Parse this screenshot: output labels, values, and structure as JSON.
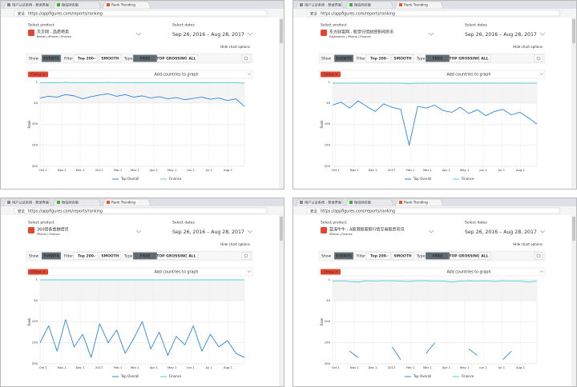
{
  "windows": [
    {
      "tabs": [
        "用户认证系统 - 登录界面",
        "微信网页版",
        "Rank Trending"
      ],
      "secure": "安全",
      "url": "https://appfigures.com/reports/ranking",
      "product_label": "Select product",
      "product": "贝贝网 - 品质特卖",
      "developer": "Beibei | iPhone | Finance",
      "dates_label": "Select dates",
      "dates": "Sep 26, 2016 – Aug 28, 2017",
      "hide_options": "Hide chart options",
      "show_label": "Show",
      "events": "EVENTS",
      "filter_label": "Filter",
      "filter": "Top 200",
      "smooth": "SMOOTH",
      "type_label": "Type",
      "types": [
        "FREE",
        "TOP GROSSING",
        "ALL"
      ],
      "country": "China ×",
      "add_countries": "Add countries to graph",
      "chart_data": {
        "type": "line",
        "y_label": "Rank",
        "reversed": true,
        "grid": true,
        "x": [
          0,
          14,
          28,
          42,
          56,
          70,
          84,
          98,
          112,
          126,
          140,
          154,
          168,
          182,
          196,
          210,
          224,
          238,
          252,
          266,
          280,
          294,
          308,
          322,
          336
        ],
        "xlim": [
          0,
          336
        ],
        "xticks": [
          {
            "value": 5,
            "label": "Oct 1"
          },
          {
            "value": 36,
            "label": "Nov 1"
          },
          {
            "value": 66,
            "label": "Dec 1"
          },
          {
            "value": 97,
            "label": "2017"
          },
          {
            "value": 128,
            "label": "Feb 1"
          },
          {
            "value": 156,
            "label": "Mar 1"
          },
          {
            "value": 187,
            "label": "Apr 1"
          },
          {
            "value": 217,
            "label": "May 1"
          },
          {
            "value": 248,
            "label": "Jun 1"
          },
          {
            "value": 278,
            "label": "Jul 1"
          },
          {
            "value": 309,
            "label": "Aug 1"
          }
        ],
        "ylim": [
          1,
          200
        ],
        "yticks": [
          1,
          50,
          100,
          150,
          200
        ],
        "series": [
          {
            "name": "Top Overall",
            "color": "#2f86d9",
            "values": [
              38,
              34,
              36,
              30,
              33,
              40,
              35,
              31,
              28,
              34,
              30,
              36,
              33,
              38,
              35,
              40,
              37,
              42,
              39,
              36,
              41,
              38,
              44,
              40,
              58
            ]
          },
          {
            "name": "Finance",
            "color": "#4fd1d9",
            "values": [
              2,
              2,
              2,
              1,
              2,
              2,
              2,
              2,
              1,
              2,
              2,
              2,
              2,
              2,
              2,
              2,
              2,
              2,
              2,
              2,
              2,
              2,
              2,
              2,
              3
            ]
          }
        ]
      }
    },
    {
      "tabs": [
        "用户认证系统 - 登录界面",
        "微信网页版",
        "Rank Trending"
      ],
      "secure": "安全",
      "url": "https://appfigures.com/reports/ranking",
      "product_label": "Select product",
      "product": "东方财富网 - 股票行情财经新闻资讯",
      "developer": "Eastmoney | iPhone | Finance",
      "dates_label": "Select dates",
      "dates": "Sep 26, 2016 – Aug 28, 2017",
      "hide_options": "Hide chart options",
      "show_label": "Show",
      "events": "EVENTS",
      "filter_label": "Filter",
      "filter": "Top 200",
      "smooth": "SMOOTH",
      "type_label": "Type",
      "types": [
        "FREE",
        "TOP GROSSING",
        "ALL"
      ],
      "country": "China ×",
      "add_countries": "Add countries to graph",
      "chart_data": {
        "type": "line",
        "y_label": "Rank",
        "reversed": true,
        "grid": true,
        "x": [
          0,
          14,
          28,
          42,
          56,
          70,
          84,
          98,
          112,
          126,
          140,
          154,
          168,
          182,
          196,
          210,
          224,
          238,
          252,
          266,
          280,
          294,
          308,
          322,
          336
        ],
        "xlim": [
          0,
          336
        ],
        "xticks": [
          {
            "value": 5,
            "label": "Oct 1"
          },
          {
            "value": 36,
            "label": "Nov 1"
          },
          {
            "value": 66,
            "label": "Dec 1"
          },
          {
            "value": 97,
            "label": "2017"
          },
          {
            "value": 128,
            "label": "Feb 1"
          },
          {
            "value": 156,
            "label": "Mar 1"
          },
          {
            "value": 187,
            "label": "Apr 1"
          },
          {
            "value": 217,
            "label": "May 1"
          },
          {
            "value": 248,
            "label": "Jun 1"
          },
          {
            "value": 278,
            "label": "Jul 1"
          },
          {
            "value": 309,
            "label": "Aug 1"
          }
        ],
        "ylim": [
          1,
          200
        ],
        "yticks": [
          1,
          50,
          100,
          150,
          200
        ],
        "series": [
          {
            "name": "Top Overall",
            "color": "#2f86d9",
            "values": [
              55,
              48,
              62,
              45,
              58,
              70,
              52,
              60,
              65,
              150,
              58,
              62,
              55,
              68,
              72,
              60,
              75,
              66,
              80,
              70,
              65,
              78,
              72,
              85,
              100
            ]
          },
          {
            "name": "Finance",
            "color": "#4fd1d9",
            "values": [
              3,
              3,
              3,
              3,
              3,
              3,
              3,
              3,
              3,
              4,
              3,
              3,
              3,
              3,
              3,
              3,
              3,
              3,
              3,
              3,
              3,
              3,
              3,
              3,
              3
            ]
          }
        ]
      }
    },
    {
      "tabs": [
        "用户认证系统 - 登录界面",
        "微信网页版",
        "Rank Trending"
      ],
      "secure": "安全",
      "url": "https://appfigures.com/reports/ranking",
      "product_label": "Select product",
      "product": "360借条金融借贷",
      "developer": "iPhone | Finance",
      "dates_label": "Select dates",
      "dates": "Sep 26, 2016 – Aug 28, 2017",
      "hide_options": "Hide chart options",
      "show_label": "Show",
      "events": "EVENTS",
      "filter_label": "Filter",
      "filter": "Top 200",
      "smooth": "SMOOTH",
      "type_label": "Type",
      "types": [
        "FREE",
        "TOP GROSSING",
        "ALL"
      ],
      "country": "China ×",
      "add_countries": "Add countries to graph",
      "chart_data": {
        "type": "line",
        "y_label": "Rank",
        "reversed": true,
        "grid": true,
        "x": [
          0,
          14,
          28,
          42,
          56,
          70,
          84,
          98,
          112,
          126,
          140,
          154,
          168,
          182,
          196,
          210,
          224,
          238,
          252,
          266,
          280,
          294,
          308,
          322,
          336
        ],
        "xlim": [
          0,
          336
        ],
        "xticks": [
          {
            "value": 5,
            "label": "Oct 1"
          },
          {
            "value": 36,
            "label": "Nov 1"
          },
          {
            "value": 66,
            "label": "Dec 1"
          },
          {
            "value": 97,
            "label": "2017"
          },
          {
            "value": 128,
            "label": "Feb 1"
          },
          {
            "value": 156,
            "label": "Mar 1"
          },
          {
            "value": 187,
            "label": "Apr 1"
          },
          {
            "value": 217,
            "label": "May 1"
          },
          {
            "value": 248,
            "label": "Jun 1"
          },
          {
            "value": 278,
            "label": "Jul 1"
          },
          {
            "value": 309,
            "label": "Aug 1"
          }
        ],
        "ylim": [
          1,
          200
        ],
        "yticks": [
          1,
          50,
          100,
          150,
          200
        ],
        "series": [
          {
            "name": "Top Overall",
            "color": "#2f86d9",
            "values": [
              150,
              110,
              170,
              95,
              160,
              130,
              185,
              105,
              150,
              120,
              175,
              140,
              100,
              165,
              125,
              180,
              135,
              155,
              110,
              170,
              130,
              160,
              145,
              175,
              185
            ]
          },
          {
            "name": "Finance",
            "color": "#4fd1d9",
            "values": [
              1,
              1,
              1,
              1,
              1,
              1,
              1,
              1,
              1,
              1,
              1,
              1,
              1,
              1,
              1,
              1,
              1,
              1,
              1,
              1,
              1,
              1,
              1,
              1,
              1
            ]
          }
        ]
      }
    },
    {
      "tabs": [
        "用户认证系统 - 登录界面",
        "微信网页版",
        "Rank Trending"
      ],
      "secure": "安全",
      "url": "https://appfigures.com/reports/ranking",
      "product_label": "Select product",
      "product": "蓝涛牛牛 - A股港股美股行情交易股票资讯",
      "developer": "iPhone | Finance",
      "dates_label": "Select dates",
      "dates": "Sep 26, 2016 – Aug 28, 2017",
      "hide_options": "Hide chart options",
      "show_label": "Show",
      "events": "EVENTS",
      "filter_label": "Filter",
      "filter": "Top 200",
      "smooth": "SMOOTH",
      "type_label": "Type",
      "types": [
        "FREE",
        "TOP GROSSING",
        "ALL"
      ],
      "country": "China ×",
      "add_countries": "Add countries to graph",
      "chart_data": {
        "type": "line",
        "y_label": "Rank",
        "reversed": true,
        "grid": true,
        "x": [
          0,
          14,
          28,
          42,
          56,
          70,
          84,
          98,
          112,
          126,
          140,
          154,
          168,
          182,
          196,
          210,
          224,
          238,
          252,
          266,
          280,
          294,
          308,
          322,
          336
        ],
        "xlim": [
          0,
          336
        ],
        "xticks": [
          {
            "value": 5,
            "label": "Oct 1"
          },
          {
            "value": 36,
            "label": "Nov 1"
          },
          {
            "value": 66,
            "label": "Dec 1"
          },
          {
            "value": 97,
            "label": "2017"
          },
          {
            "value": 128,
            "label": "Feb 1"
          },
          {
            "value": 156,
            "label": "Mar 1"
          },
          {
            "value": 187,
            "label": "Apr 1"
          },
          {
            "value": 217,
            "label": "May 1"
          },
          {
            "value": 248,
            "label": "Jun 1"
          },
          {
            "value": 278,
            "label": "Jul 1"
          },
          {
            "value": 309,
            "label": "Aug 1"
          }
        ],
        "ylim": [
          1,
          200
        ],
        "yticks": [
          1,
          50,
          100,
          150,
          200
        ],
        "series": [
          {
            "name": "Top Overall",
            "color": "#2f86d9",
            "values": [
              null,
              null,
              170,
              185,
              null,
              null,
              null,
              160,
              190,
              null,
              null,
              175,
              150,
              null,
              null,
              null,
              165,
              180,
              null,
              null,
              190,
              170,
              null,
              null,
              null
            ]
          },
          {
            "name": "Finance",
            "color": "#4fd1d9",
            "values": [
              4,
              3,
              5,
              6,
              3,
              4,
              3,
              3,
              4,
              5,
              3,
              3,
              4,
              4,
              6,
              4,
              3,
              4,
              3,
              5,
              3,
              4,
              4,
              6,
              4
            ]
          }
        ]
      }
    }
  ]
}
